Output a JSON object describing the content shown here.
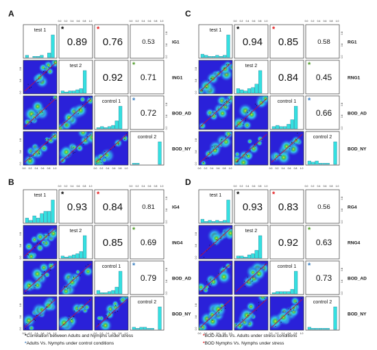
{
  "colors": {
    "black_star": "#000000",
    "red_star": "#e31a1c",
    "green_star": "#4d9a26",
    "blue_star": "#3a7fc1",
    "hist_bar": "#35e0e0",
    "density_low": "#2a21d9",
    "density_mid": "#33c7f2",
    "density_high": "#44c94b",
    "density_peak": "#ffe31a",
    "fit_line": "#b5134c"
  },
  "footnotes": {
    "left_1_star": "*",
    "left_1_text": "Correlation between Adults and Nymphs under stress",
    "left_2_star": "*",
    "left_2_text": "Adults Vs. Nymphs under control conditions",
    "right_1_star": "*",
    "right_1_text": "BOD Adults Vs. Adults under stress conditions",
    "right_2_star": "*",
    "right_2_text": "BOD Nymphs Vs. Nymphs under stress"
  },
  "chart_data": [
    {
      "type": "scatterplot-matrix",
      "panel": "A",
      "diagonal_labels": [
        "test 1",
        "test 2",
        "control 1",
        "control 2"
      ],
      "right_labels": [
        "IG1",
        "ING1",
        "BOD_AD",
        "BOD_NY"
      ],
      "tick_labels": [
        "0.0",
        "0.2",
        "0.4",
        "0.6",
        "0.8",
        "1.0"
      ],
      "axis_range": [
        0,
        1
      ],
      "correlations": [
        {
          "row": 0,
          "col": 1,
          "value": "0.89",
          "star": "*",
          "star_color": "black"
        },
        {
          "row": 0,
          "col": 2,
          "value": "0.76",
          "star": "*",
          "star_color": "red"
        },
        {
          "row": 0,
          "col": 3,
          "value": "0.53",
          "star": "",
          "star_color": ""
        },
        {
          "row": 1,
          "col": 2,
          "value": "0.92",
          "star": "",
          "star_color": ""
        },
        {
          "row": 1,
          "col": 3,
          "value": "0.71",
          "star": "*",
          "star_color": "green"
        },
        {
          "row": 2,
          "col": 3,
          "value": "0.72",
          "star": "*",
          "star_color": "blue"
        }
      ],
      "histograms": [
        [
          0.1,
          0.0,
          0.05,
          0.05,
          0.1,
          0.0,
          0.2,
          1.0
        ],
        [
          0.1,
          0.05,
          0.1,
          0.1,
          0.15,
          0.2,
          1.0,
          0.0
        ],
        [
          0.05,
          0.1,
          0.05,
          0.1,
          0.15,
          0.35,
          1.0,
          0.0
        ],
        [
          0.05,
          0.05,
          0.0,
          0.0,
          0.0,
          0.0,
          0.0,
          1.0
        ]
      ]
    },
    {
      "type": "scatterplot-matrix",
      "panel": "B",
      "diagonal_labels": [
        "test 1",
        "test 2",
        "control 1",
        "control 2"
      ],
      "right_labels": [
        "IG4",
        "ING4",
        "BOD_AD",
        "BOD_NY"
      ],
      "tick_labels": [
        "0.0",
        "0.2",
        "0.4",
        "0.6",
        "0.8",
        "1.0"
      ],
      "axis_range": [
        0,
        1
      ],
      "correlations": [
        {
          "row": 0,
          "col": 1,
          "value": "0.93",
          "star": "*",
          "star_color": "black"
        },
        {
          "row": 0,
          "col": 2,
          "value": "0.84",
          "star": "*",
          "star_color": "red"
        },
        {
          "row": 0,
          "col": 3,
          "value": "0.81",
          "star": "",
          "star_color": ""
        },
        {
          "row": 1,
          "col": 2,
          "value": "0.85",
          "star": "",
          "star_color": ""
        },
        {
          "row": 1,
          "col": 3,
          "value": "0.69",
          "star": "*",
          "star_color": "green"
        },
        {
          "row": 2,
          "col": 3,
          "value": "0.79",
          "star": "*",
          "star_color": "blue"
        }
      ],
      "histograms": [
        [
          0.2,
          0.1,
          0.3,
          0.2,
          0.4,
          0.5,
          0.5,
          1.0
        ],
        [
          0.1,
          0.05,
          0.1,
          0.15,
          0.2,
          0.3,
          1.0,
          0.0
        ],
        [
          0.15,
          0.05,
          0.05,
          0.1,
          0.15,
          0.3,
          1.0,
          0.0
        ],
        [
          0.1,
          0.05,
          0.1,
          0.1,
          0.05,
          0.05,
          0.0,
          1.0
        ]
      ]
    },
    {
      "type": "scatterplot-matrix",
      "panel": "C",
      "diagonal_labels": [
        "test 1",
        "test 2",
        "control 1",
        "control 2"
      ],
      "right_labels": [
        "RG1",
        "RNG1",
        "BOD_AD",
        "BOD_NY"
      ],
      "tick_labels": [
        "0.0",
        "0.2",
        "0.4",
        "0.6",
        "0.8",
        "1.0"
      ],
      "axis_range": [
        0,
        1
      ],
      "correlations": [
        {
          "row": 0,
          "col": 1,
          "value": "0.94",
          "star": "*",
          "star_color": "black"
        },
        {
          "row": 0,
          "col": 2,
          "value": "0.85",
          "star": "*",
          "star_color": "red"
        },
        {
          "row": 0,
          "col": 3,
          "value": "0.58",
          "star": "",
          "star_color": ""
        },
        {
          "row": 1,
          "col": 2,
          "value": "0.84",
          "star": "",
          "star_color": ""
        },
        {
          "row": 1,
          "col": 3,
          "value": "0.45",
          "star": "*",
          "star_color": "green"
        },
        {
          "row": 2,
          "col": 3,
          "value": "0.66",
          "star": "*",
          "star_color": "blue"
        }
      ],
      "histograms": [
        [
          0.15,
          0.1,
          0.05,
          0.05,
          0.1,
          0.05,
          0.1,
          1.0
        ],
        [
          0.2,
          0.15,
          0.1,
          0.2,
          0.25,
          0.4,
          1.0,
          0.0
        ],
        [
          0.1,
          0.15,
          0.1,
          0.1,
          0.2,
          0.4,
          1.0,
          0.0
        ],
        [
          0.15,
          0.1,
          0.15,
          0.05,
          0.05,
          0.05,
          0.0,
          1.0
        ]
      ]
    },
    {
      "type": "scatterplot-matrix",
      "panel": "D",
      "diagonal_labels": [
        "test 1",
        "test 2",
        "control 1",
        "control 2"
      ],
      "right_labels": [
        "RG4",
        "RNG4",
        "BOD_AD",
        "BOD_NY"
      ],
      "tick_labels": [
        "0.0",
        "0.2",
        "0.4",
        "0.6",
        "0.8",
        "1.0"
      ],
      "axis_range": [
        0,
        1
      ],
      "correlations": [
        {
          "row": 0,
          "col": 1,
          "value": "0.93",
          "star": "*",
          "star_color": "black"
        },
        {
          "row": 0,
          "col": 2,
          "value": "0.83",
          "star": "*",
          "star_color": "red"
        },
        {
          "row": 0,
          "col": 3,
          "value": "0.56",
          "star": "",
          "star_color": ""
        },
        {
          "row": 1,
          "col": 2,
          "value": "0.92",
          "star": "",
          "star_color": ""
        },
        {
          "row": 1,
          "col": 3,
          "value": "0.63",
          "star": "*",
          "star_color": "green"
        },
        {
          "row": 2,
          "col": 3,
          "value": "0.73",
          "star": "*",
          "star_color": "blue"
        }
      ],
      "histograms": [
        [
          0.15,
          0.05,
          0.1,
          0.05,
          0.1,
          0.05,
          0.1,
          1.0
        ],
        [
          0.1,
          0.1,
          0.05,
          0.15,
          0.2,
          0.35,
          1.0,
          0.0
        ],
        [
          0.05,
          0.1,
          0.1,
          0.1,
          0.1,
          0.2,
          1.0,
          0.0
        ],
        [
          0.1,
          0.05,
          0.05,
          0.05,
          0.05,
          0.05,
          0.0,
          1.0
        ]
      ]
    }
  ]
}
